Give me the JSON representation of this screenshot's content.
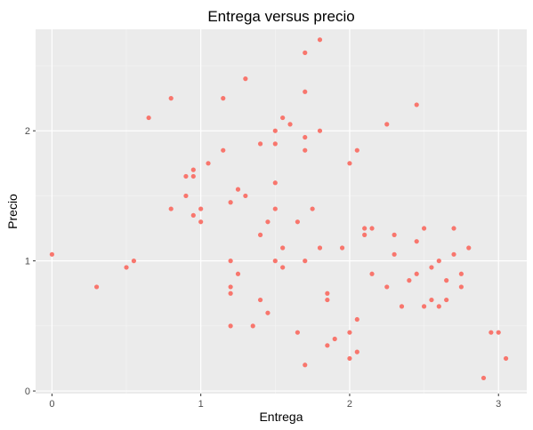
{
  "chart_data": {
    "type": "scatter",
    "title": "Entrega versus precio",
    "xlabel": "Entrega",
    "ylabel": "Precio",
    "xlim": [
      -0.11,
      3.19
    ],
    "ylim": [
      -0.02,
      2.78
    ],
    "x_ticks": [
      0,
      1,
      2,
      3
    ],
    "x_tick_labels": [
      "0",
      "1",
      "2",
      "3"
    ],
    "y_ticks": [
      0,
      1,
      2
    ],
    "y_tick_labels": [
      "0",
      "1",
      "2"
    ],
    "grid": true,
    "legend": "none",
    "colors": {
      "panel_background": "#EBEBEB",
      "grid_major": "#FFFFFF",
      "grid_minor": "#F5F5F5",
      "point": "#F8766D",
      "tick_mark": "#333333"
    },
    "x": [
      0.0,
      0.3,
      0.5,
      0.55,
      0.65,
      0.8,
      0.8,
      0.9,
      0.9,
      0.95,
      0.95,
      0.95,
      1.0,
      1.0,
      1.05,
      1.15,
      1.15,
      1.2,
      1.2,
      1.2,
      1.2,
      1.2,
      1.25,
      1.25,
      1.3,
      1.3,
      1.35,
      1.4,
      1.4,
      1.4,
      1.45,
      1.45,
      1.5,
      1.5,
      1.5,
      1.5,
      1.5,
      1.55,
      1.55,
      1.55,
      1.6,
      1.65,
      1.65,
      1.7,
      1.7,
      1.7,
      1.7,
      1.7,
      1.7,
      1.75,
      1.8,
      1.8,
      1.8,
      1.85,
      1.85,
      1.85,
      1.9,
      1.95,
      2.0,
      2.0,
      2.0,
      2.05,
      2.05,
      2.05,
      2.1,
      2.1,
      2.15,
      2.15,
      2.25,
      2.25,
      2.3,
      2.3,
      2.35,
      2.4,
      2.45,
      2.45,
      2.45,
      2.5,
      2.5,
      2.55,
      2.55,
      2.6,
      2.6,
      2.65,
      2.65,
      2.7,
      2.7,
      2.75,
      2.75,
      2.8,
      2.9,
      2.95,
      3.0,
      3.05
    ],
    "y": [
      1.05,
      0.8,
      0.95,
      1.0,
      2.1,
      2.25,
      1.4,
      1.65,
      1.5,
      1.7,
      1.65,
      1.35,
      1.4,
      1.3,
      1.75,
      2.25,
      1.85,
      1.45,
      1.0,
      0.8,
      0.75,
      0.5,
      1.55,
      0.9,
      2.4,
      1.5,
      0.5,
      1.9,
      1.2,
      0.7,
      1.3,
      0.6,
      2.0,
      1.9,
      1.6,
      1.4,
      1.0,
      2.1,
      1.1,
      0.95,
      2.05,
      1.3,
      0.45,
      2.6,
      2.3,
      1.95,
      1.85,
      1.0,
      0.2,
      1.4,
      2.7,
      2.0,
      1.1,
      0.75,
      0.7,
      0.35,
      0.4,
      1.1,
      1.75,
      0.45,
      0.25,
      1.85,
      0.55,
      0.3,
      1.25,
      1.2,
      1.25,
      0.9,
      2.05,
      0.8,
      1.2,
      1.05,
      0.65,
      0.85,
      2.2,
      1.15,
      0.9,
      1.25,
      0.65,
      0.95,
      0.7,
      1.0,
      0.65,
      0.85,
      0.7,
      1.25,
      1.05,
      0.9,
      0.8,
      1.1,
      0.1,
      0.45,
      0.45,
      0.25
    ]
  }
}
